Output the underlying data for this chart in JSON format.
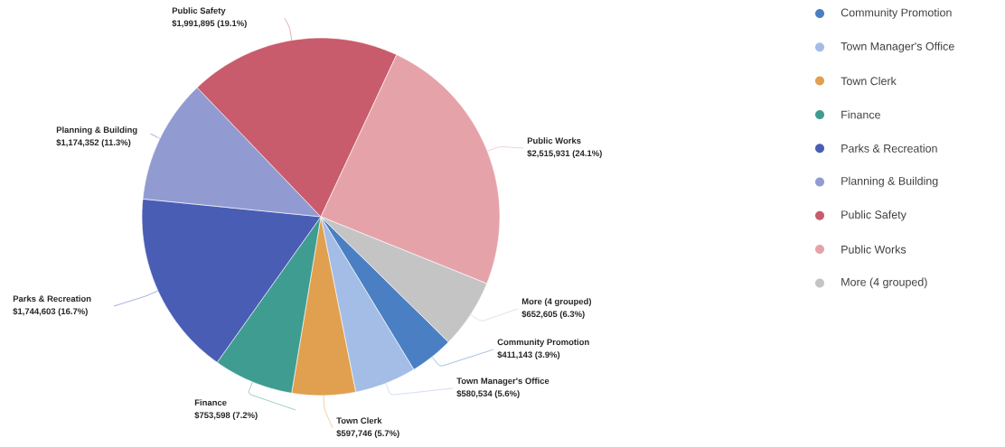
{
  "chart_data": {
    "type": "pie",
    "categories": [
      "Community Promotion",
      "Town Manager's Office",
      "Town Clerk",
      "Finance",
      "Parks & Recreation",
      "Planning & Building",
      "Public Safety",
      "Public Works",
      "More (4 grouped)"
    ],
    "values": [
      411143,
      580534,
      597746,
      753598,
      1744603,
      1174352,
      1991895,
      2515931,
      652605
    ],
    "colors": [
      "#4a7fc4",
      "#a3bde6",
      "#e0a050",
      "#3f9c90",
      "#4a5db5",
      "#929bd1",
      "#c85c6c",
      "#e5a3a9",
      "#c4c4c4"
    ],
    "value_labels": [
      "$411,143 (3.9%)",
      "$580,534 (5.6%)",
      "$597,746 (5.7%)",
      "$753,598 (7.2%)",
      "$1,744,603 (16.7%)",
      "$1,174,352 (11.3%)",
      "$1,991,895 (19.1%)",
      "$2,515,931 (24.1%)",
      "$652,605 (6.3%)"
    ],
    "legend": "right"
  }
}
